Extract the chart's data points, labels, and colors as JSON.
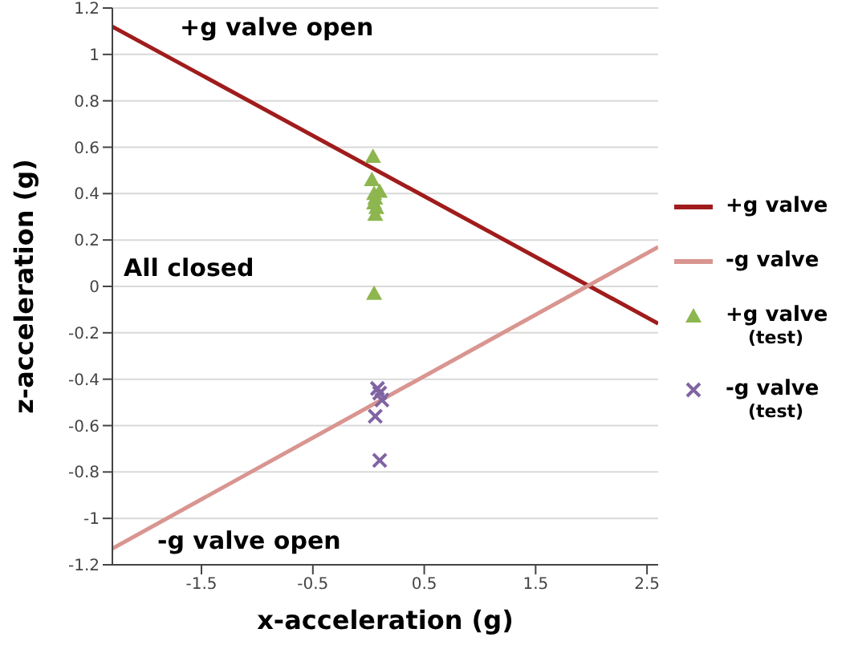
{
  "chart_data": {
    "type": "scatter",
    "xlabel": "x-acceleration (g)",
    "ylabel": "z-acceleration (g)",
    "xlim": [
      -2.3,
      2.6
    ],
    "xticks": [
      -1.5,
      -0.5,
      0.5,
      1.5,
      2.5
    ],
    "ylim": [
      -1.2,
      1.2
    ],
    "yticks": [
      -1.2,
      -1,
      -0.8,
      -0.6,
      -0.4,
      -0.2,
      0,
      0.2,
      0.4,
      0.6,
      0.8,
      1,
      1.2
    ],
    "grid": "y",
    "legend": "right",
    "annotations": [
      "+g valve open",
      "All closed",
      "-g valve open"
    ],
    "series": [
      {
        "name": "+g valve",
        "type": "line",
        "color": "#a01c1c",
        "x": [
          -2.3,
          2.6
        ],
        "values": [
          1.12,
          -0.16
        ]
      },
      {
        "name": "-g valve",
        "type": "line",
        "color": "#d99590",
        "x": [
          -2.3,
          2.6
        ],
        "values": [
          -1.13,
          0.17
        ]
      },
      {
        "name": "+g valve (test)",
        "type": "scatter",
        "marker": "triangle",
        "color": "#8db64f",
        "x": [
          0.04,
          0.03,
          0.1,
          0.05,
          0.06,
          0.05,
          0.07,
          0.06,
          0.05
        ],
        "values": [
          0.56,
          0.46,
          0.41,
          0.4,
          0.38,
          0.36,
          0.34,
          0.31,
          -0.03
        ]
      },
      {
        "name": "-g valve (test)",
        "type": "scatter",
        "marker": "cross",
        "color": "#8064a2",
        "x": [
          0.08,
          0.1,
          0.12,
          0.06,
          0.1
        ],
        "values": [
          -0.44,
          -0.46,
          -0.49,
          -0.56,
          -0.75
        ]
      }
    ]
  }
}
